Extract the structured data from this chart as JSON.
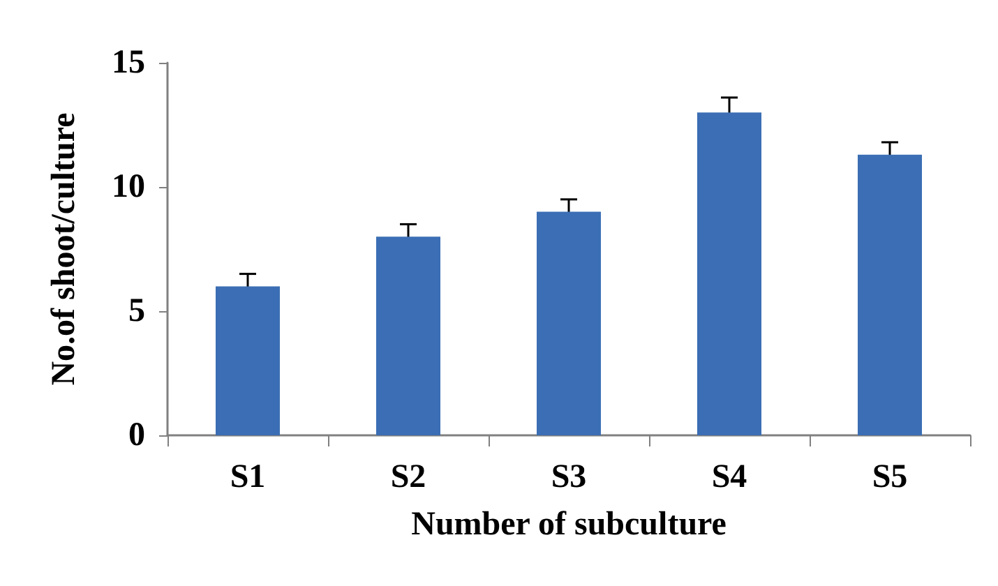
{
  "chart_data": {
    "type": "bar",
    "xlabel": "Number of subculture",
    "ylabel": "No.of shoot/culture",
    "categories": [
      "S1",
      "S2",
      "S3",
      "S4",
      "S5"
    ],
    "values": [
      6,
      8,
      9,
      13,
      11.3
    ],
    "errors": [
      0.5,
      0.5,
      0.5,
      0.6,
      0.5
    ],
    "color": "#3b6eb4",
    "ylim": [
      0,
      15
    ],
    "yticks": [
      0,
      5,
      10,
      15
    ],
    "grid": false
  }
}
